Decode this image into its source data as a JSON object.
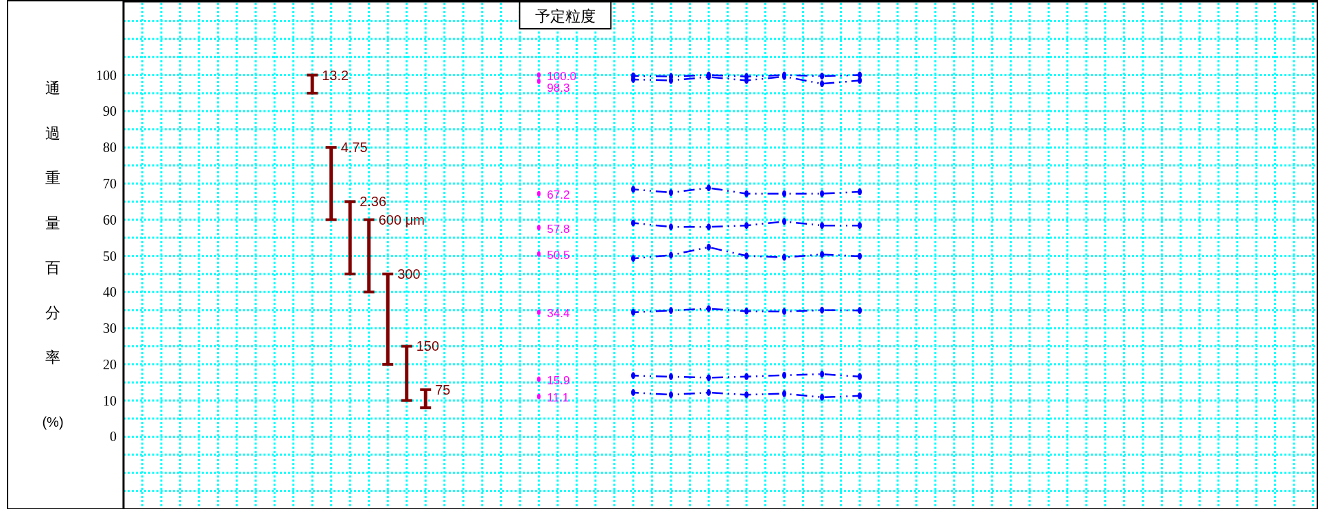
{
  "chart_data": {
    "type": "bar",
    "ylabel": "通過重量百分率(%)",
    "categories": [
      null,
      null,
      null,
      null,
      null,
      null,
      null,
      null,
      null,
      null,
      null,
      null,
      null,
      null,
      null,
      null,
      null,
      null,
      null,
      null,
      null,
      null,
      null,
      null,
      null,
      null,
      null,
      null,
      null,
      null,
      null,
      null,
      null,
      null,
      null,
      null,
      null,
      null,
      null,
      null,
      null,
      null,
      null,
      null,
      null,
      null,
      null,
      null,
      null,
      null,
      null,
      null,
      null,
      null,
      null,
      null,
      null,
      null,
      null,
      null,
      null,
      null,
      null
    ],
    "ylim": [
      -20,
      120
    ],
    "yticks": [
      {
        "value": -15,
        "label": null
      },
      {
        "value": -10,
        "label": null
      },
      {
        "value": -5,
        "label": null
      },
      0,
      {
        "value": 5,
        "label": null
      },
      10,
      {
        "value": 15,
        "label": null
      },
      20,
      {
        "value": 25,
        "label": null
      },
      30,
      {
        "value": 35,
        "label": null
      },
      40,
      {
        "value": 45,
        "label": null
      },
      50,
      {
        "value": 55,
        "label": null
      },
      60,
      {
        "value": 65,
        "label": null
      },
      70,
      {
        "value": 75,
        "label": null
      },
      80,
      {
        "value": 85,
        "label": null
      },
      90,
      {
        "value": 95,
        "label": null
      },
      100,
      {
        "value": 105,
        "label": null
      },
      {
        "value": 110,
        "label": null
      },
      {
        "value": 115,
        "label": null
      }
    ],
    "grid": true,
    "marker": "circle",
    "line_style": "dashed",
    "annotations": [
      "予定粒度",
      "13.2",
      "4.75",
      "2.36",
      "600 μm",
      "300",
      "150",
      "75"
    ],
    "series": [
      {
        "color": "#800000",
        "base": [
          null,
          null,
          null,
          null,
          null,
          null,
          null,
          null,
          null,
          95,
          60,
          45,
          40,
          20,
          10,
          8,
          null,
          null,
          null,
          null,
          null,
          null,
          null,
          null,
          null,
          null,
          null,
          null,
          null,
          null,
          null,
          null,
          null,
          null,
          null,
          null,
          null,
          null,
          null,
          null,
          null,
          null,
          null,
          null,
          null,
          null,
          null,
          null,
          null,
          null,
          null,
          null,
          null,
          null,
          null,
          null,
          null,
          null,
          null,
          null,
          null,
          null,
          null
        ],
        "values": [
          null,
          null,
          null,
          null,
          null,
          null,
          null,
          null,
          null,
          5,
          20,
          20,
          20,
          25,
          15,
          5,
          null,
          null,
          null,
          null,
          null,
          null,
          null,
          null,
          null,
          null,
          null,
          null,
          null,
          null,
          null,
          null,
          null,
          null,
          null,
          null,
          null,
          null,
          null,
          null,
          null,
          null,
          null,
          null,
          null,
          null,
          null,
          null,
          null,
          null,
          null,
          null,
          null,
          null,
          null,
          null,
          null,
          null,
          null,
          null,
          null,
          null,
          null
        ]
      },
      {
        "type": "scatter",
        "color": "#ff00ff",
        "values": [
          null,
          null,
          null,
          null,
          null,
          null,
          null,
          null,
          null,
          null,
          null,
          null,
          null,
          null,
          null,
          null,
          null,
          null,
          null,
          null,
          null,
          100.0,
          null,
          null,
          null,
          null,
          null,
          null,
          null,
          null,
          null,
          null,
          null,
          null,
          null,
          null,
          null,
          null,
          null,
          null,
          null,
          null,
          null,
          null,
          null,
          null,
          null,
          null,
          null,
          null,
          null,
          null,
          null,
          null,
          null,
          null,
          null,
          null,
          null,
          null,
          null,
          null,
          null
        ],
        "value_labels": [
          null,
          null,
          null,
          null,
          null,
          null,
          null,
          null,
          null,
          null,
          null,
          null,
          null,
          null,
          null,
          null,
          null,
          null,
          null,
          null,
          null,
          "100.0",
          null,
          null,
          null,
          null,
          null,
          null,
          null,
          null,
          null,
          null,
          null,
          null,
          null,
          null,
          null,
          null,
          null,
          null,
          null,
          null,
          null,
          null,
          null,
          null,
          null,
          null,
          null,
          null,
          null,
          null,
          null,
          null,
          null,
          null,
          null,
          null,
          null,
          null,
          null,
          null,
          null
        ]
      },
      {
        "type": "scatter",
        "color": "#ff00ff",
        "values": [
          null,
          null,
          null,
          null,
          null,
          null,
          null,
          null,
          null,
          null,
          null,
          null,
          null,
          null,
          null,
          null,
          null,
          null,
          null,
          null,
          null,
          98.3,
          null,
          null,
          null,
          null,
          null,
          null,
          null,
          null,
          null,
          null,
          null,
          null,
          null,
          null,
          null,
          null,
          null,
          null,
          null,
          null,
          null,
          null,
          null,
          null,
          null,
          null,
          null,
          null,
          null,
          null,
          null,
          null,
          null,
          null,
          null,
          null,
          null,
          null,
          null,
          null,
          null
        ],
        "value_labels": [
          null,
          null,
          null,
          null,
          null,
          null,
          null,
          null,
          null,
          null,
          null,
          null,
          null,
          null,
          null,
          null,
          null,
          null,
          null,
          null,
          null,
          "98.3",
          null,
          null,
          null,
          null,
          null,
          null,
          null,
          null,
          null,
          null,
          null,
          null,
          null,
          null,
          null,
          null,
          null,
          null,
          null,
          null,
          null,
          null,
          null,
          null,
          null,
          null,
          null,
          null,
          null,
          null,
          null,
          null,
          null,
          null,
          null,
          null,
          null,
          null,
          null,
          null,
          null
        ]
      },
      {
        "type": "scatter",
        "color": "#ff00ff",
        "values": [
          null,
          null,
          null,
          null,
          null,
          null,
          null,
          null,
          null,
          null,
          null,
          null,
          null,
          null,
          null,
          null,
          null,
          null,
          null,
          null,
          null,
          67.2,
          null,
          null,
          null,
          null,
          null,
          null,
          null,
          null,
          null,
          null,
          null,
          null,
          null,
          null,
          null,
          null,
          null,
          null,
          null,
          null,
          null,
          null,
          null,
          null,
          null,
          null,
          null,
          null,
          null,
          null,
          null,
          null,
          null,
          null,
          null,
          null,
          null,
          null,
          null,
          null,
          null
        ],
        "value_labels": [
          null,
          null,
          null,
          null,
          null,
          null,
          null,
          null,
          null,
          null,
          null,
          null,
          null,
          null,
          null,
          null,
          null,
          null,
          null,
          null,
          null,
          "67.2",
          null,
          null,
          null,
          null,
          null,
          null,
          null,
          null,
          null,
          null,
          null,
          null,
          null,
          null,
          null,
          null,
          null,
          null,
          null,
          null,
          null,
          null,
          null,
          null,
          null,
          null,
          null,
          null,
          null,
          null,
          null,
          null,
          null,
          null,
          null,
          null,
          null,
          null,
          null,
          null,
          null
        ]
      },
      {
        "type": "scatter",
        "color": "#ff00ff",
        "values": [
          null,
          null,
          null,
          null,
          null,
          null,
          null,
          null,
          null,
          null,
          null,
          null,
          null,
          null,
          null,
          null,
          null,
          null,
          null,
          null,
          null,
          57.8,
          null,
          null,
          null,
          null,
          null,
          null,
          null,
          null,
          null,
          null,
          null,
          null,
          null,
          null,
          null,
          null,
          null,
          null,
          null,
          null,
          null,
          null,
          null,
          null,
          null,
          null,
          null,
          null,
          null,
          null,
          null,
          null,
          null,
          null,
          null,
          null,
          null,
          null,
          null,
          null,
          null
        ],
        "value_labels": [
          null,
          null,
          null,
          null,
          null,
          null,
          null,
          null,
          null,
          null,
          null,
          null,
          null,
          null,
          null,
          null,
          null,
          null,
          null,
          null,
          null,
          "57.8",
          null,
          null,
          null,
          null,
          null,
          null,
          null,
          null,
          null,
          null,
          null,
          null,
          null,
          null,
          null,
          null,
          null,
          null,
          null,
          null,
          null,
          null,
          null,
          null,
          null,
          null,
          null,
          null,
          null,
          null,
          null,
          null,
          null,
          null,
          null,
          null,
          null,
          null,
          null,
          null,
          null
        ]
      },
      {
        "type": "scatter",
        "color": "#ff00ff",
        "values": [
          null,
          null,
          null,
          null,
          null,
          null,
          null,
          null,
          null,
          null,
          null,
          null,
          null,
          null,
          null,
          null,
          null,
          null,
          null,
          null,
          null,
          50.5,
          null,
          null,
          null,
          null,
          null,
          null,
          null,
          null,
          null,
          null,
          null,
          null,
          null,
          null,
          null,
          null,
          null,
          null,
          null,
          null,
          null,
          null,
          null,
          null,
          null,
          null,
          null,
          null,
          null,
          null,
          null,
          null,
          null,
          null,
          null,
          null,
          null,
          null,
          null,
          null,
          null
        ],
        "value_labels": [
          null,
          null,
          null,
          null,
          null,
          null,
          null,
          null,
          null,
          null,
          null,
          null,
          null,
          null,
          null,
          null,
          null,
          null,
          null,
          null,
          null,
          "50.5",
          null,
          null,
          null,
          null,
          null,
          null,
          null,
          null,
          null,
          null,
          null,
          null,
          null,
          null,
          null,
          null,
          null,
          null,
          null,
          null,
          null,
          null,
          null,
          null,
          null,
          null,
          null,
          null,
          null,
          null,
          null,
          null,
          null,
          null,
          null,
          null,
          null,
          null,
          null,
          null,
          null
        ]
      },
      {
        "type": "scatter",
        "color": "#ff00ff",
        "values": [
          null,
          null,
          null,
          null,
          null,
          null,
          null,
          null,
          null,
          null,
          null,
          null,
          null,
          null,
          null,
          null,
          null,
          null,
          null,
          null,
          null,
          34.4,
          null,
          null,
          null,
          null,
          null,
          null,
          null,
          null,
          null,
          null,
          null,
          null,
          null,
          null,
          null,
          null,
          null,
          null,
          null,
          null,
          null,
          null,
          null,
          null,
          null,
          null,
          null,
          null,
          null,
          null,
          null,
          null,
          null,
          null,
          null,
          null,
          null,
          null,
          null,
          null,
          null
        ],
        "value_labels": [
          null,
          null,
          null,
          null,
          null,
          null,
          null,
          null,
          null,
          null,
          null,
          null,
          null,
          null,
          null,
          null,
          null,
          null,
          null,
          null,
          null,
          "34.4",
          null,
          null,
          null,
          null,
          null,
          null,
          null,
          null,
          null,
          null,
          null,
          null,
          null,
          null,
          null,
          null,
          null,
          null,
          null,
          null,
          null,
          null,
          null,
          null,
          null,
          null,
          null,
          null,
          null,
          null,
          null,
          null,
          null,
          null,
          null,
          null,
          null,
          null,
          null,
          null,
          null
        ]
      },
      {
        "type": "scatter",
        "color": "#ff00ff",
        "values": [
          null,
          null,
          null,
          null,
          null,
          null,
          null,
          null,
          null,
          null,
          null,
          null,
          null,
          null,
          null,
          null,
          null,
          null,
          null,
          null,
          null,
          15.9,
          null,
          null,
          null,
          null,
          null,
          null,
          null,
          null,
          null,
          null,
          null,
          null,
          null,
          null,
          null,
          null,
          null,
          null,
          null,
          null,
          null,
          null,
          null,
          null,
          null,
          null,
          null,
          null,
          null,
          null,
          null,
          null,
          null,
          null,
          null,
          null,
          null,
          null,
          null,
          null,
          null
        ],
        "value_labels": [
          null,
          null,
          null,
          null,
          null,
          null,
          null,
          null,
          null,
          null,
          null,
          null,
          null,
          null,
          null,
          null,
          null,
          null,
          null,
          null,
          null,
          "15.9",
          null,
          null,
          null,
          null,
          null,
          null,
          null,
          null,
          null,
          null,
          null,
          null,
          null,
          null,
          null,
          null,
          null,
          null,
          null,
          null,
          null,
          null,
          null,
          null,
          null,
          null,
          null,
          null,
          null,
          null,
          null,
          null,
          null,
          null,
          null,
          null,
          null,
          null,
          null,
          null,
          null
        ]
      },
      {
        "type": "scatter",
        "color": "#ff00ff",
        "values": [
          null,
          null,
          null,
          null,
          null,
          null,
          null,
          null,
          null,
          null,
          null,
          null,
          null,
          null,
          null,
          null,
          null,
          null,
          null,
          null,
          null,
          11.1,
          null,
          null,
          null,
          null,
          null,
          null,
          null,
          null,
          null,
          null,
          null,
          null,
          null,
          null,
          null,
          null,
          null,
          null,
          null,
          null,
          null,
          null,
          null,
          null,
          null,
          null,
          null,
          null,
          null,
          null,
          null,
          null,
          null,
          null,
          null,
          null,
          null,
          null,
          null,
          null,
          null
        ],
        "value_labels": [
          null,
          null,
          null,
          null,
          null,
          null,
          null,
          null,
          null,
          null,
          null,
          null,
          null,
          null,
          null,
          null,
          null,
          null,
          null,
          null,
          null,
          "11.1",
          null,
          null,
          null,
          null,
          null,
          null,
          null,
          null,
          null,
          null,
          null,
          null,
          null,
          null,
          null,
          null,
          null,
          null,
          null,
          null,
          null,
          null,
          null,
          null,
          null,
          null,
          null,
          null,
          null,
          null,
          null,
          null,
          null,
          null,
          null,
          null,
          null,
          null,
          null,
          null,
          null
        ]
      },
      {
        "type": "line",
        "color": "#0000ff",
        "values": [
          null,
          null,
          null,
          null,
          null,
          null,
          null,
          null,
          null,
          null,
          null,
          null,
          null,
          null,
          null,
          null,
          null,
          null,
          null,
          null,
          null,
          null,
          null,
          null,
          null,
          null,
          99.8,
          null,
          99.6,
          null,
          100.0,
          null,
          99.6,
          null,
          100.0,
          null,
          99.7,
          null,
          100.0,
          null,
          null,
          null,
          null,
          null,
          null,
          null,
          null,
          null,
          null,
          null,
          null,
          null,
          null,
          null,
          null,
          null,
          null,
          null,
          null,
          null,
          null,
          null,
          null
        ]
      },
      {
        "type": "line",
        "color": "#0000ff",
        "values": [
          null,
          null,
          null,
          null,
          null,
          null,
          null,
          null,
          null,
          null,
          null,
          null,
          null,
          null,
          null,
          null,
          null,
          null,
          null,
          null,
          null,
          null,
          null,
          null,
          null,
          null,
          98.8,
          null,
          98.5,
          null,
          99.5,
          null,
          98.5,
          null,
          99.6,
          null,
          97.6,
          null,
          98.5,
          null,
          null,
          null,
          null,
          null,
          null,
          null,
          null,
          null,
          null,
          null,
          null,
          null,
          null,
          null,
          null,
          null,
          null,
          null,
          null,
          null,
          null,
          null,
          null
        ]
      },
      {
        "type": "line",
        "color": "#0000ff",
        "values": [
          null,
          null,
          null,
          null,
          null,
          null,
          null,
          null,
          null,
          null,
          null,
          null,
          null,
          null,
          null,
          null,
          null,
          null,
          null,
          null,
          null,
          null,
          null,
          null,
          null,
          null,
          68.4,
          null,
          67.5,
          null,
          68.8,
          null,
          67.2,
          null,
          67.2,
          null,
          67.2,
          null,
          67.7,
          null,
          null,
          null,
          null,
          null,
          null,
          null,
          null,
          null,
          null,
          null,
          null,
          null,
          null,
          null,
          null,
          null,
          null,
          null,
          null,
          null,
          null,
          null,
          null
        ]
      },
      {
        "type": "line",
        "color": "#0000ff",
        "values": [
          null,
          null,
          null,
          null,
          null,
          null,
          null,
          null,
          null,
          null,
          null,
          null,
          null,
          null,
          null,
          null,
          null,
          null,
          null,
          null,
          null,
          null,
          null,
          null,
          null,
          null,
          59.1,
          null,
          58.0,
          null,
          58.0,
          null,
          58.4,
          null,
          59.5,
          null,
          58.4,
          null,
          58.4,
          null,
          null,
          null,
          null,
          null,
          null,
          null,
          null,
          null,
          null,
          null,
          null,
          null,
          null,
          null,
          null,
          null,
          null,
          null,
          null,
          null,
          null,
          null,
          null
        ]
      },
      {
        "type": "line",
        "color": "#0000ff",
        "values": [
          null,
          null,
          null,
          null,
          null,
          null,
          null,
          null,
          null,
          null,
          null,
          null,
          null,
          null,
          null,
          null,
          null,
          null,
          null,
          null,
          null,
          null,
          null,
          null,
          null,
          null,
          49.3,
          null,
          50.2,
          null,
          52.4,
          null,
          50.0,
          null,
          49.6,
          null,
          50.4,
          null,
          49.9,
          null,
          null,
          null,
          null,
          null,
          null,
          null,
          null,
          null,
          null,
          null,
          null,
          null,
          null,
          null,
          null,
          null,
          null,
          null,
          null,
          null,
          null,
          null,
          null
        ]
      },
      {
        "type": "line",
        "color": "#0000ff",
        "values": [
          null,
          null,
          null,
          null,
          null,
          null,
          null,
          null,
          null,
          null,
          null,
          null,
          null,
          null,
          null,
          null,
          null,
          null,
          null,
          null,
          null,
          null,
          null,
          null,
          null,
          null,
          34.4,
          null,
          34.9,
          null,
          35.4,
          null,
          34.7,
          null,
          34.6,
          null,
          35.0,
          null,
          34.9,
          null,
          null,
          null,
          null,
          null,
          null,
          null,
          null,
          null,
          null,
          null,
          null,
          null,
          null,
          null,
          null,
          null,
          null,
          null,
          null,
          null,
          null,
          null,
          null
        ]
      },
      {
        "type": "line",
        "color": "#0000ff",
        "values": [
          null,
          null,
          null,
          null,
          null,
          null,
          null,
          null,
          null,
          null,
          null,
          null,
          null,
          null,
          null,
          null,
          null,
          null,
          null,
          null,
          null,
          null,
          null,
          null,
          null,
          null,
          16.9,
          null,
          16.6,
          null,
          16.3,
          null,
          16.6,
          null,
          17.0,
          null,
          17.3,
          null,
          16.6,
          null,
          null,
          null,
          null,
          null,
          null,
          null,
          null,
          null,
          null,
          null,
          null,
          null,
          null,
          null,
          null,
          null,
          null,
          null,
          null,
          null,
          null,
          null,
          null
        ]
      },
      {
        "type": "line",
        "color": "#0000ff",
        "values": [
          null,
          null,
          null,
          null,
          null,
          null,
          null,
          null,
          null,
          null,
          null,
          null,
          null,
          null,
          null,
          null,
          null,
          null,
          null,
          null,
          null,
          null,
          null,
          null,
          null,
          null,
          12.2,
          null,
          11.6,
          null,
          12.2,
          null,
          11.6,
          null,
          11.9,
          null,
          10.9,
          null,
          11.3,
          null,
          null,
          null,
          null,
          null,
          null,
          null,
          null,
          null,
          null,
          null,
          null,
          null,
          null,
          null,
          null,
          null,
          null,
          null,
          null,
          null,
          null,
          null,
          null
        ]
      }
    ]
  }
}
